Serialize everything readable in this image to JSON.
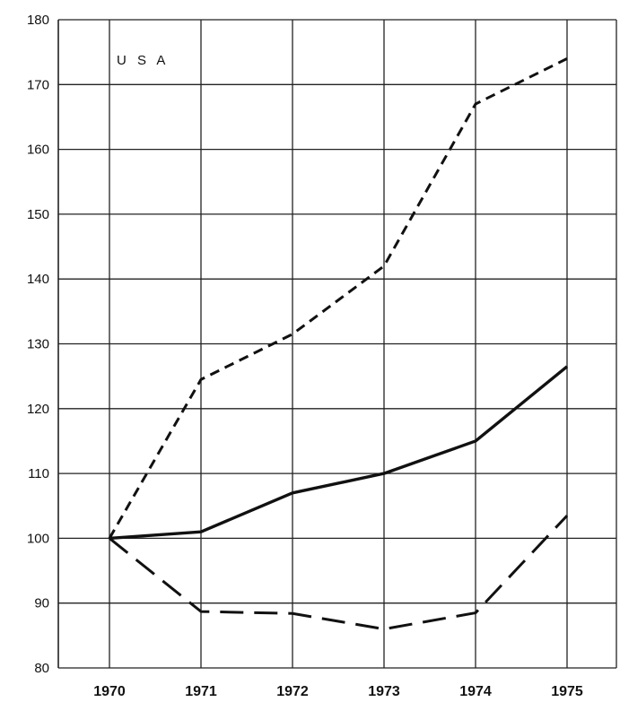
{
  "chart_data": {
    "type": "line",
    "title": "",
    "annotation": "U S A",
    "xlabel": "",
    "ylabel": "",
    "x": [
      "1970",
      "1971",
      "1972",
      "1973",
      "1974",
      "1975"
    ],
    "ylim": [
      80,
      180
    ],
    "yticks": [
      80,
      90,
      100,
      110,
      120,
      130,
      140,
      150,
      160,
      170,
      180
    ],
    "grid": true,
    "legend": "none",
    "series": [
      {
        "style": "short-dash",
        "values": [
          100,
          124.5,
          131.5,
          142,
          167,
          174
        ]
      },
      {
        "style": "solid",
        "values": [
          100,
          101,
          107,
          110,
          115,
          126.5
        ]
      },
      {
        "style": "long-dash",
        "values": [
          100,
          88.7,
          88.4,
          86,
          88.5,
          103.5
        ]
      }
    ],
    "colors": {
      "line": "#111111",
      "grid": "#222222"
    }
  }
}
